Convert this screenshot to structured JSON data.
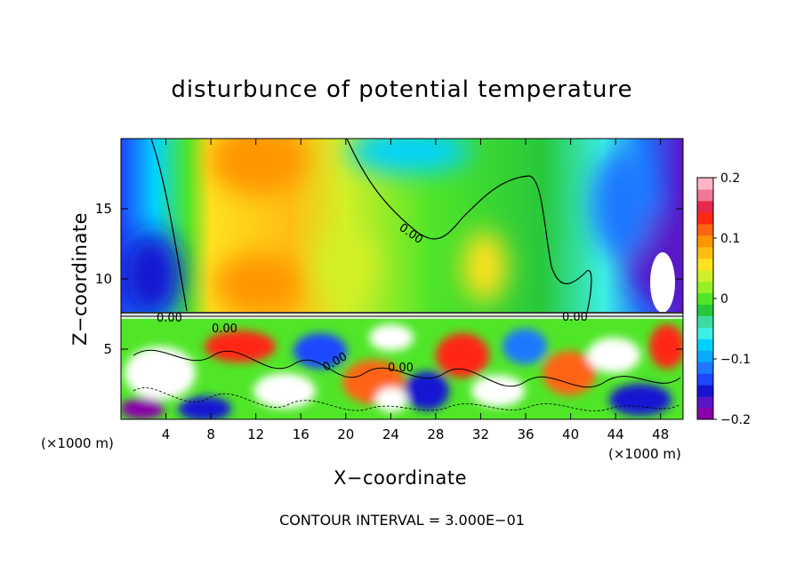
{
  "chart_data": {
    "type": "heatmap",
    "title": "disturbunce of potential temperature",
    "xlabel": "X−coordinate",
    "ylabel": "Z−coordinate",
    "x_unit_label": "(×1000 m)",
    "x_unit_label_right": "(×1000 m)",
    "xlim": [
      0,
      50
    ],
    "ylim": [
      0,
      20
    ],
    "x_ticks": [
      4,
      8,
      12,
      16,
      20,
      24,
      28,
      32,
      36,
      40,
      44,
      48
    ],
    "x_tick_labels": [
      "4",
      "8",
      "12",
      "16",
      "20",
      "24",
      "28",
      "32",
      "36",
      "40",
      "44",
      "48"
    ],
    "y_ticks": [
      5,
      10,
      15
    ],
    "y_tick_labels": [
      "5",
      "10",
      "15"
    ],
    "colorbar": {
      "min": -0.2,
      "max": 0.2,
      "ticks": [
        0.2,
        0.1,
        0,
        -0.1,
        -0.2
      ],
      "tick_labels": [
        "0.2",
        "0.1",
        "0",
        "−0.1",
        "−0.2"
      ],
      "colors": [
        "#8a00a8",
        "#5a14c8",
        "#1414d2",
        "#1e46ff",
        "#1e78ff",
        "#0aaaff",
        "#00d2ff",
        "#3cf0e6",
        "#3cdca0",
        "#28c83c",
        "#50e628",
        "#96f028",
        "#d2f028",
        "#ffe11e",
        "#ffbe14",
        "#ff9600",
        "#ff6414",
        "#ff2814",
        "#e6284b",
        "#f07896",
        "#ffb4c8"
      ]
    },
    "contour_labels": [
      "0.00",
      "0.00",
      "0.00",
      "0.00",
      "0.00",
      "0.00"
    ],
    "contour_interval_text": "CONTOUR INTERVAL = 3.000E−01",
    "grid": false,
    "legend": "colorbar-right"
  }
}
